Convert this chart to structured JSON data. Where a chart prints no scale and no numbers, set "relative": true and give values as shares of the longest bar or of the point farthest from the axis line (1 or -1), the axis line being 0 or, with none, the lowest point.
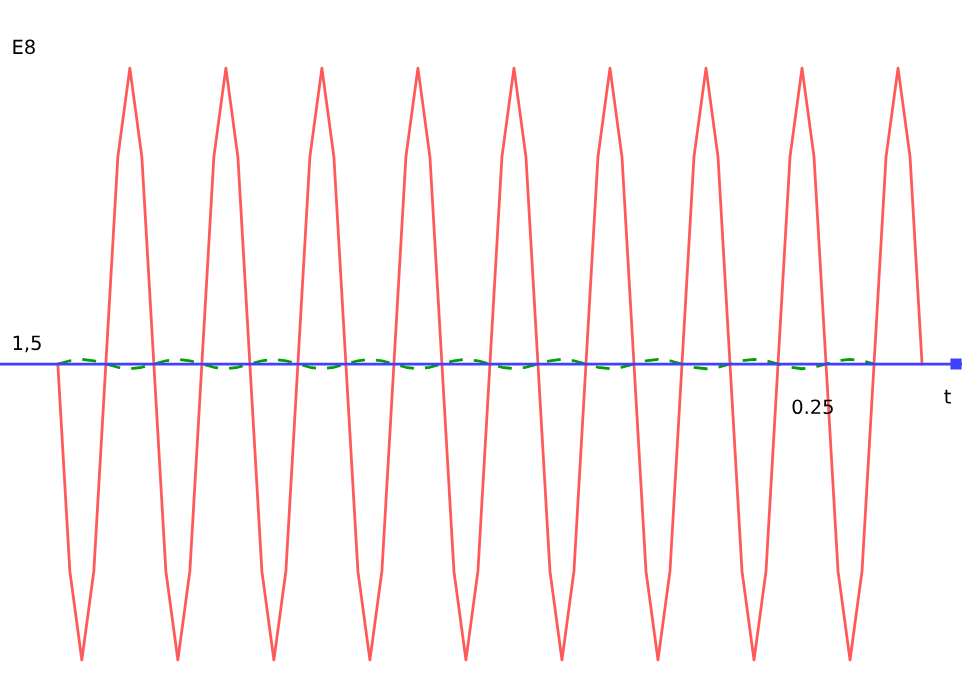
{
  "chart_data": {
    "type": "line",
    "xlabel": "t",
    "annotations": [
      "E8",
      "1,5",
      "0.25"
    ],
    "relative": true,
    "ref_lines": [
      {
        "axis": "y",
        "value": 0,
        "color": "#4040ff"
      }
    ],
    "categories": [
      null,
      null,
      null,
      null,
      null,
      null,
      null,
      null,
      null,
      null,
      null,
      null,
      null,
      null,
      null,
      null,
      null,
      null,
      null,
      null,
      null,
      null,
      null,
      null,
      null,
      null,
      null,
      null,
      null,
      null,
      null,
      null,
      null,
      null,
      null,
      null,
      null,
      null,
      null,
      null,
      null,
      null,
      null,
      null,
      null,
      null,
      null,
      null,
      null,
      null,
      null,
      null,
      null,
      null,
      null,
      null,
      null,
      null,
      null,
      null,
      null,
      null,
      null,
      null,
      null,
      null,
      null,
      null,
      null,
      null,
      null,
      null,
      null
    ],
    "series": [
      {
        "color": "#ff5a5a",
        "line_style": "solid",
        "values": [
          0,
          -0.7,
          -1,
          -0.7,
          0,
          0.7,
          1,
          0.7,
          0,
          -0.7,
          -1,
          -0.7,
          0,
          0.7,
          1,
          0.7,
          0,
          -0.7,
          -1,
          -0.7,
          0,
          0.7,
          1,
          0.7,
          0,
          -0.7,
          -1,
          -0.7,
          0,
          0.7,
          1,
          0.7,
          0,
          -0.7,
          -1,
          -0.7,
          0,
          0.7,
          1,
          0.7,
          0,
          -0.7,
          -1,
          -0.7,
          0,
          0.7,
          1,
          0.7,
          0,
          -0.7,
          -1,
          -0.7,
          0,
          0.7,
          1,
          0.7,
          0,
          -0.7,
          -1,
          -0.7,
          0,
          0.7,
          1,
          0.7,
          0,
          -0.7,
          -1,
          -0.7,
          0,
          0.7,
          1,
          0.7,
          0
        ]
      },
      {
        "color": "#00a000",
        "line_style": "dashed",
        "values": [
          0,
          0.011,
          0.016,
          0.011,
          0,
          -0.011,
          -0.016,
          -0.011,
          0,
          0.011,
          0.016,
          0.011,
          0,
          -0.011,
          -0.016,
          -0.011,
          0,
          0.011,
          0.016,
          0.011,
          0,
          -0.011,
          -0.016,
          -0.011,
          0,
          0.011,
          0.016,
          0.011,
          0,
          -0.011,
          -0.016,
          -0.011,
          0,
          0.011,
          0.016,
          0.011,
          0,
          -0.011,
          -0.016,
          -0.011,
          0,
          0.011,
          0.016,
          0.011,
          0,
          -0.011,
          -0.016,
          -0.011,
          0,
          0.011,
          0.016,
          0.011,
          0,
          -0.011,
          -0.016,
          -0.011,
          0,
          0.011,
          0.016,
          0.011,
          0,
          -0.011,
          -0.016,
          -0.011,
          0,
          0.011,
          0.016,
          0.011,
          0,
          null,
          null,
          null,
          null
        ]
      }
    ]
  }
}
